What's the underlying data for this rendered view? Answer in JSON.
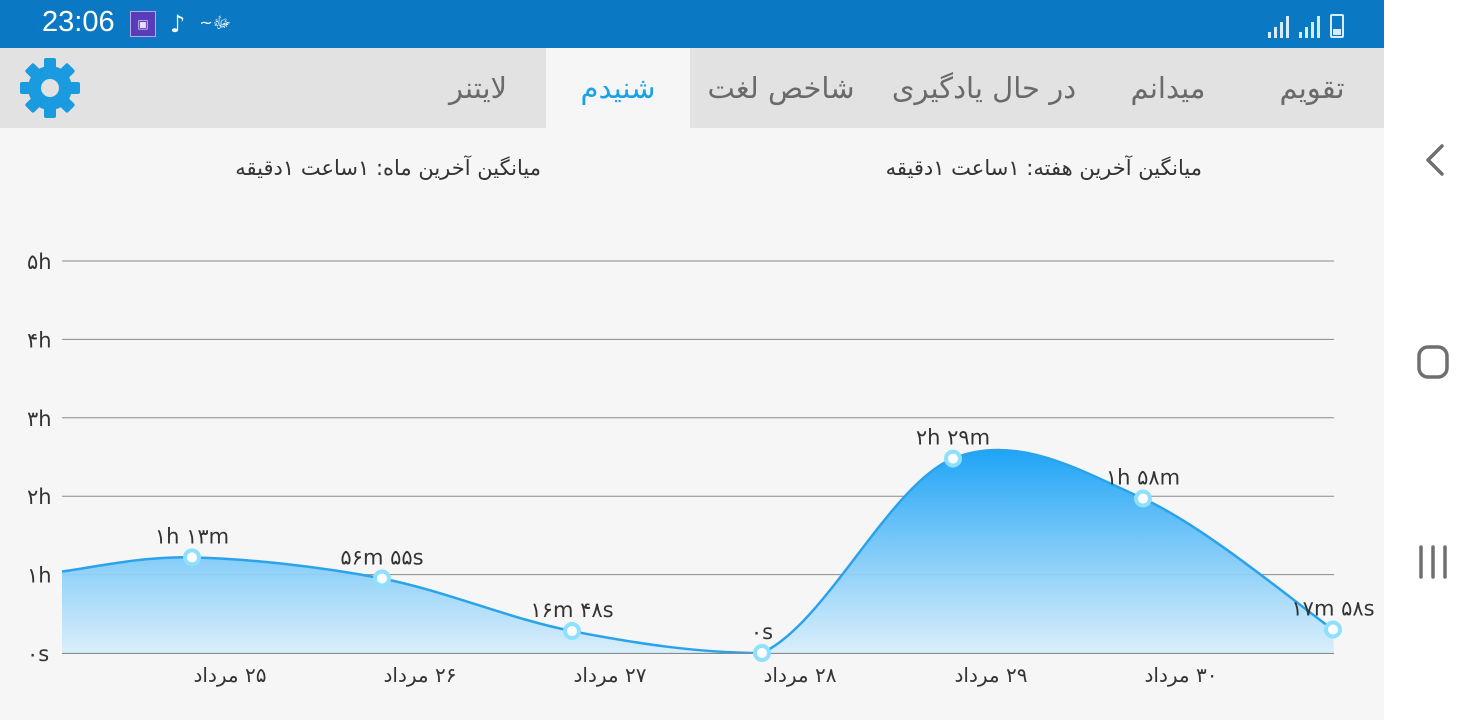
{
  "status_bar": {
    "time": "23:06",
    "left_icons": [
      "app-icon",
      "music-note-icon",
      "arabic-logo-icon"
    ],
    "right_icons": [
      "signal-icon",
      "signal-icon",
      "battery-icon"
    ]
  },
  "tabs": [
    {
      "label": "تقویم",
      "active": false
    },
    {
      "label": "میدانم",
      "active": false
    },
    {
      "label": "در حال یادگیری",
      "active": false
    },
    {
      "label": "شاخص لغت",
      "active": false
    },
    {
      "label": "شنیدم",
      "active": true
    },
    {
      "label": "لایتنر",
      "active": false
    }
  ],
  "settings_icon": "gear-icon",
  "accent_color": "#1aa2e6",
  "averages": {
    "week": "میانگین آخرین هفته: ۱ساعت  ۱دقیقه",
    "month": "میانگین آخرین ماه: ۱ساعت  ۱دقیقه"
  },
  "chart_data": {
    "type": "area",
    "y_ticks": [
      "۰s",
      "۱h",
      "۲h",
      "۳h",
      "۴h",
      "۵h"
    ],
    "ylim": [
      0,
      5
    ],
    "grid": true,
    "categories": [
      "۲۵ مرداد",
      "۲۶ مرداد",
      "۲۷ مرداد",
      "۲۸ مرداد",
      "۲۹ مرداد",
      "۳۰ مرداد",
      ""
    ],
    "values_hours": [
      1.22,
      0.95,
      0.28,
      0,
      2.48,
      1.97,
      0.3
    ],
    "value_labels": [
      "۱h ۱۳m",
      "۵۶m ۵۵s",
      "۱۶m ۴۸s",
      "۰s",
      "۲h ۲۹m",
      "۱h ۵۸m",
      "۱۷m ۵۸s"
    ],
    "line_color": "#2aa3ea",
    "fill_color": "#2ba8f5"
  },
  "nav": {
    "back_icon": "chevron-left-icon",
    "home_icon": "home-square-icon",
    "recents_icon": "recents-icon"
  }
}
